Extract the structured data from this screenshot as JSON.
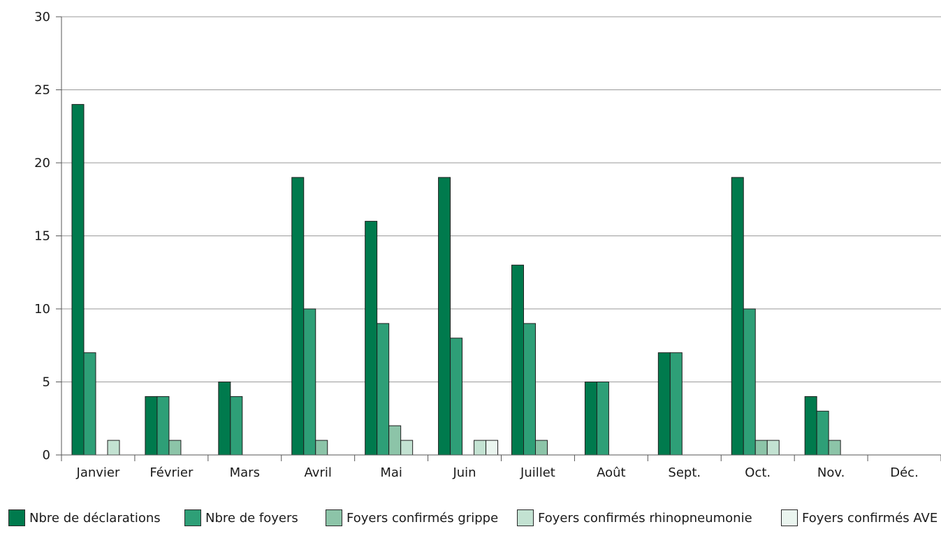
{
  "chart_data": {
    "type": "bar",
    "title": "",
    "xlabel": "",
    "ylabel": "",
    "ylim": [
      0,
      30
    ],
    "yticks": [
      0,
      5,
      10,
      15,
      20,
      25,
      30
    ],
    "grid": "horizontal",
    "legend_position": "bottom",
    "categories": [
      "Janvier",
      "Février",
      "Mars",
      "Avril",
      "Mai",
      "Juin",
      "Juillet",
      "Août",
      "Sept.",
      "Oct.",
      "Nov.",
      "Déc."
    ],
    "series": [
      {
        "name": "Nbre de déclarations",
        "color": "#007a4d",
        "values": [
          24,
          4,
          5,
          19,
          16,
          19,
          13,
          5,
          7,
          19,
          4,
          0
        ]
      },
      {
        "name": "Nbre de foyers",
        "color": "#2e9f77",
        "values": [
          7,
          4,
          4,
          10,
          9,
          8,
          9,
          5,
          7,
          10,
          3,
          0
        ]
      },
      {
        "name": "Foyers confirmés grippe",
        "color": "#8cc4a8",
        "values": [
          0,
          1,
          0,
          1,
          2,
          0,
          1,
          0,
          0,
          1,
          1,
          0
        ]
      },
      {
        "name": "Foyers confirmés rhinopneumonie",
        "color": "#c3e2d2",
        "values": [
          1,
          0,
          0,
          0,
          1,
          1,
          0,
          0,
          0,
          1,
          0,
          0
        ]
      },
      {
        "name": "Foyers confirmés AVE",
        "color": "#eaf5ef",
        "values": [
          0,
          0,
          0,
          0,
          0,
          1,
          0,
          0,
          0,
          0,
          0,
          0
        ]
      }
    ]
  }
}
